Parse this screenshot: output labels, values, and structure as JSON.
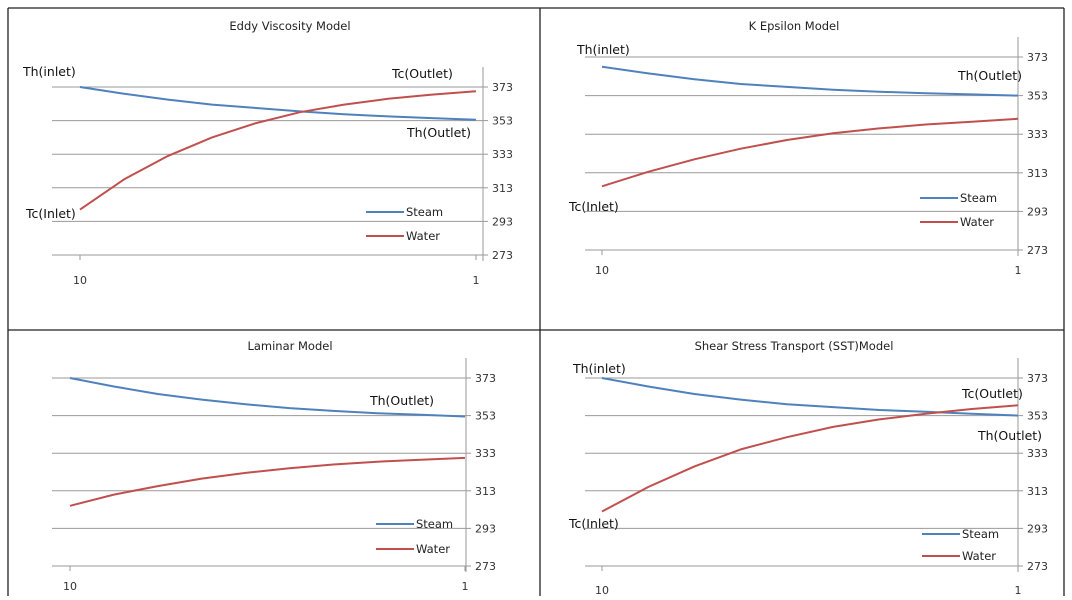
{
  "chart_data": [
    {
      "type": "line",
      "title": "Eddy Viscosity Model",
      "x": [
        10,
        9,
        8,
        7,
        6,
        5,
        4,
        3,
        2,
        1
      ],
      "x_ticks": [
        "10",
        "1"
      ],
      "y_ticks": [
        "373",
        "353",
        "333",
        "313",
        "293",
        "273"
      ],
      "ylim": [
        273,
        373
      ],
      "series": [
        {
          "name": "Steam",
          "color": "#4f81bd",
          "values": [
            373,
            369,
            365.5,
            362.5,
            360.5,
            358.5,
            356.8,
            355.5,
            354.5,
            353.5
          ]
        },
        {
          "name": "Water",
          "color": "#c0504d",
          "values": [
            300,
            318,
            332,
            343,
            351.5,
            358,
            362.5,
            366,
            368.5,
            370.5
          ]
        }
      ],
      "annotations": [
        "Th(inlet)",
        "Tc(Outlet)",
        "Th(Outlet)",
        "Tc(Inlet)"
      ]
    },
    {
      "type": "line",
      "title": "K Epsilon Model",
      "x": [
        10,
        9,
        8,
        7,
        6,
        5,
        4,
        3,
        2,
        1
      ],
      "x_ticks": [
        "10",
        "1"
      ],
      "y_ticks": [
        "373",
        "353",
        "333",
        "313",
        "293",
        "273"
      ],
      "ylim": [
        273,
        373
      ],
      "series": [
        {
          "name": "Steam",
          "color": "#4f81bd",
          "values": [
            368,
            364.5,
            361.5,
            359,
            357.5,
            356,
            355,
            354.2,
            353.6,
            353
          ]
        },
        {
          "name": "Water",
          "color": "#c0504d",
          "values": [
            306,
            313.5,
            320,
            325.5,
            330,
            333.5,
            336,
            338,
            339.5,
            341
          ]
        }
      ],
      "annotations": [
        "Th(inlet)",
        "Th(Outlet)",
        "Tc(Inlet)"
      ]
    },
    {
      "type": "line",
      "title": "Laminar Model",
      "x": [
        10,
        9,
        8,
        7,
        6,
        5,
        4,
        3,
        2,
        1
      ],
      "x_ticks": [
        "10",
        "1"
      ],
      "y_ticks": [
        "373",
        "353",
        "333",
        "313",
        "293",
        "273"
      ],
      "ylim": [
        273,
        373
      ],
      "series": [
        {
          "name": "Steam",
          "color": "#4f81bd",
          "values": [
            373,
            368.5,
            364.5,
            361.5,
            359,
            357,
            355.5,
            354.3,
            353.4,
            352.5
          ]
        },
        {
          "name": "Water",
          "color": "#c0504d",
          "values": [
            305,
            311,
            315.5,
            319.5,
            322.5,
            325,
            327,
            328.5,
            329.5,
            330.5
          ]
        }
      ],
      "annotations": [
        "Th(Outlet)"
      ]
    },
    {
      "type": "line",
      "title": "Shear Stress Transport (SST)Model",
      "x": [
        10,
        9,
        8,
        7,
        6,
        5,
        4,
        3,
        2,
        1
      ],
      "x_ticks": [
        "10",
        "1"
      ],
      "y_ticks": [
        "373",
        "353",
        "333",
        "313",
        "293",
        "273"
      ],
      "ylim": [
        273,
        373
      ],
      "series": [
        {
          "name": "Steam",
          "color": "#4f81bd",
          "values": [
            373,
            368.5,
            364.5,
            361.5,
            359,
            357.5,
            356,
            355,
            354,
            353
          ]
        },
        {
          "name": "Water",
          "color": "#c0504d",
          "values": [
            302,
            315,
            326,
            335,
            341.5,
            347,
            351,
            354,
            356.5,
            358.5
          ]
        }
      ],
      "annotations": [
        "Th(inlet)",
        "Tc(Outlet)",
        "Th(Outlet)",
        "Tc(Inlet)"
      ]
    }
  ]
}
